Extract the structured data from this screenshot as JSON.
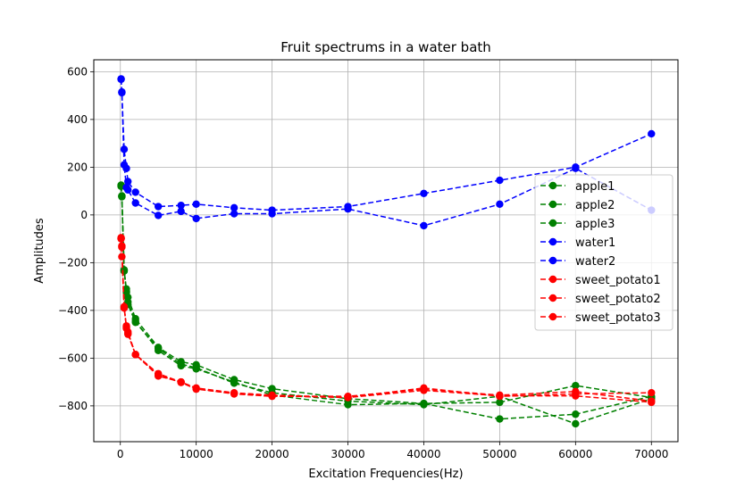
{
  "chart_data": {
    "type": "line",
    "title": "Fruit spectrums in a water bath",
    "xlabel": "Excitation Frequencies(Hz)",
    "ylabel": "Amplitudes",
    "xlim": [
      -3500,
      73500
    ],
    "ylim": [
      -950,
      650
    ],
    "xticks": [
      0,
      10000,
      20000,
      30000,
      40000,
      50000,
      60000,
      70000
    ],
    "yticks": [
      -800,
      -600,
      -400,
      -200,
      0,
      200,
      400,
      600
    ],
    "grid": true,
    "legend_position": "center right",
    "x": [
      100,
      200,
      500,
      800,
      1000,
      2000,
      5000,
      8000,
      10000,
      15000,
      20000,
      30000,
      40000,
      50000,
      60000,
      70000
    ],
    "series": [
      {
        "name": "apple1",
        "color": "#008000",
        "marker": "circle",
        "linestyle": "dashed",
        "values": [
          125,
          78,
          -235,
          -310,
          -345,
          -435,
          -555,
          -615,
          -628,
          -690,
          -728,
          -770,
          -790,
          -785,
          -715,
          -765
        ]
      },
      {
        "name": "apple2",
        "color": "#008000",
        "marker": "circle",
        "linestyle": "dashed",
        "values": [
          122,
          80,
          -232,
          -325,
          -365,
          -445,
          -568,
          -632,
          -645,
          -700,
          -755,
          -795,
          -790,
          -855,
          -835,
          -760
        ]
      },
      {
        "name": "apple3",
        "color": "#008000",
        "marker": "circle",
        "linestyle": "dashed",
        "values": [
          120,
          76,
          -230,
          -320,
          -375,
          -450,
          -560,
          -625,
          -640,
          -705,
          -745,
          -780,
          -795,
          -760,
          -875,
          -770
        ]
      },
      {
        "name": "water1",
        "color": "#0000ff",
        "marker": "circle",
        "linestyle": "dashed",
        "values": [
          570,
          515,
          275,
          195,
          140,
          95,
          35,
          40,
          45,
          30,
          20,
          35,
          90,
          145,
          200,
          340
        ]
      },
      {
        "name": "water2",
        "color": "#0000ff",
        "marker": "circle",
        "linestyle": "dashed",
        "values": [
          568,
          512,
          210,
          115,
          105,
          50,
          -2,
          15,
          -15,
          5,
          5,
          25,
          -45,
          45,
          195,
          20
        ]
      },
      {
        "name": "sweet_potato1",
        "color": "#ff0000",
        "marker": "circle",
        "linestyle": "dashed",
        "values": [
          -95,
          -130,
          -385,
          -470,
          -500,
          -585,
          -665,
          -700,
          -725,
          -745,
          -755,
          -765,
          -725,
          -760,
          -750,
          -745
        ]
      },
      {
        "name": "sweet_potato2",
        "color": "#ff0000",
        "marker": "circle",
        "linestyle": "dashed",
        "values": [
          -98,
          -135,
          -390,
          -465,
          -495,
          -585,
          -675,
          -700,
          -728,
          -750,
          -760,
          -760,
          -730,
          -755,
          -740,
          -780
        ]
      },
      {
        "name": "sweet_potato3",
        "color": "#ff0000",
        "marker": "circle",
        "linestyle": "dashed",
        "values": [
          -100,
          -175,
          -385,
          -475,
          -490,
          -585,
          -670,
          -702,
          -730,
          -748,
          -758,
          -765,
          -735,
          -758,
          -758,
          -785
        ]
      }
    ]
  }
}
